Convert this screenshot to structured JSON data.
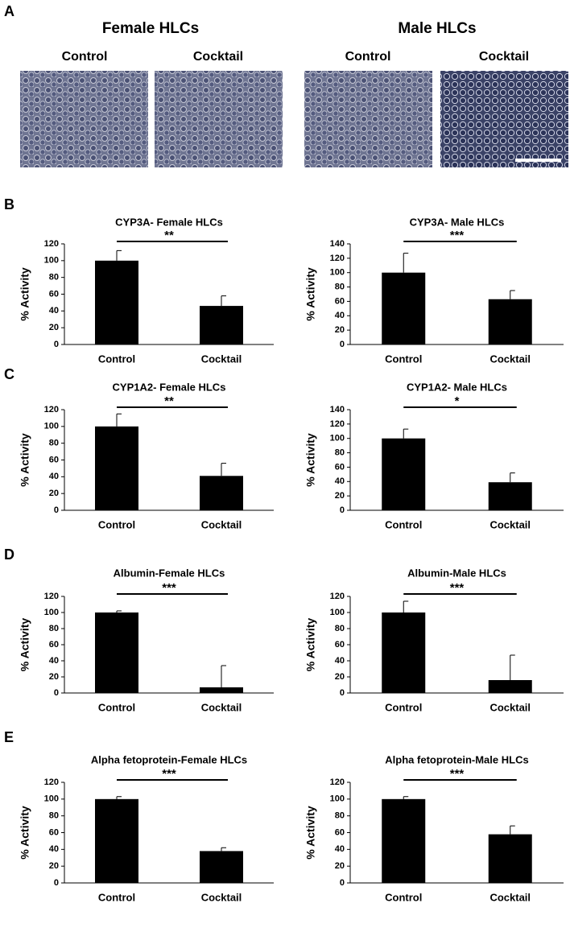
{
  "figure": {
    "panel_labels": [
      "A",
      "B",
      "C",
      "D",
      "E"
    ],
    "image_groups": [
      {
        "title": "Female HLCs",
        "conditions": [
          "Control",
          "Cocktail"
        ]
      },
      {
        "title": "Male HLCs",
        "conditions": [
          "Control",
          "Cocktail"
        ]
      }
    ]
  },
  "chart_data": [
    {
      "type": "bar",
      "title": "CYP3A- Female HLCs",
      "ylabel": "% Activity",
      "categories": [
        "Control",
        "Cocktail"
      ],
      "values": [
        100,
        46
      ],
      "errors": [
        12,
        12
      ],
      "significance": "**",
      "color": "#000000",
      "ylim": [
        0,
        120
      ],
      "yticks": [
        0,
        20,
        40,
        60,
        80,
        100,
        120
      ]
    },
    {
      "type": "bar",
      "title": "CYP3A- Male HLCs",
      "ylabel": "% Activity",
      "categories": [
        "Control",
        "Cocktail"
      ],
      "values": [
        100,
        63
      ],
      "errors": [
        27,
        12
      ],
      "significance": "***",
      "color": "#000000",
      "ylim": [
        0,
        140
      ],
      "yticks": [
        0,
        20,
        40,
        60,
        80,
        100,
        120,
        140
      ]
    },
    {
      "type": "bar",
      "title": "CYP1A2- Female HLCs",
      "ylabel": "% Activity",
      "categories": [
        "Control",
        "Cocktail"
      ],
      "values": [
        100,
        41
      ],
      "errors": [
        15,
        15
      ],
      "significance": "**",
      "color": "#000000",
      "ylim": [
        0,
        120
      ],
      "yticks": [
        0,
        20,
        40,
        60,
        80,
        100,
        120
      ]
    },
    {
      "type": "bar",
      "title": "CYP1A2- Male HLCs",
      "ylabel": "% Activity",
      "categories": [
        "Control",
        "Cocktail"
      ],
      "values": [
        100,
        39
      ],
      "errors": [
        13,
        13
      ],
      "significance": "*",
      "color": "#000000",
      "ylim": [
        0,
        140
      ],
      "yticks": [
        0,
        20,
        40,
        60,
        80,
        100,
        120,
        140
      ]
    },
    {
      "type": "bar",
      "title": "Albumin-Female HLCs",
      "ylabel": "% Activity",
      "categories": [
        "Control",
        "Cocktail"
      ],
      "values": [
        100,
        7
      ],
      "errors": [
        2,
        27
      ],
      "significance": "***",
      "color": "#000000",
      "ylim": [
        0,
        120
      ],
      "yticks": [
        0,
        20,
        40,
        60,
        80,
        100,
        120
      ]
    },
    {
      "type": "bar",
      "title": "Albumin-Male HLCs",
      "ylabel": "% Activity",
      "categories": [
        "Control",
        "Cocktail"
      ],
      "values": [
        100,
        16
      ],
      "errors": [
        14,
        31
      ],
      "significance": "***",
      "color": "#000000",
      "ylim": [
        0,
        120
      ],
      "yticks": [
        0,
        20,
        40,
        60,
        80,
        100,
        120
      ]
    },
    {
      "type": "bar",
      "title": "Alpha fetoprotein-Female HLCs",
      "ylabel": "% Activity",
      "categories": [
        "Control",
        "Cocktail"
      ],
      "values": [
        100,
        38
      ],
      "errors": [
        3,
        4
      ],
      "significance": "***",
      "color": "#000000",
      "ylim": [
        0,
        120
      ],
      "yticks": [
        0,
        20,
        40,
        60,
        80,
        100,
        120
      ]
    },
    {
      "type": "bar",
      "title": "Alpha fetoprotein-Male HLCs",
      "ylabel": "% Activity",
      "categories": [
        "Control",
        "Cocktail"
      ],
      "values": [
        100,
        58
      ],
      "errors": [
        3,
        10
      ],
      "significance": "***",
      "color": "#000000",
      "ylim": [
        0,
        120
      ],
      "yticks": [
        0,
        20,
        40,
        60,
        80,
        100,
        120
      ]
    }
  ]
}
